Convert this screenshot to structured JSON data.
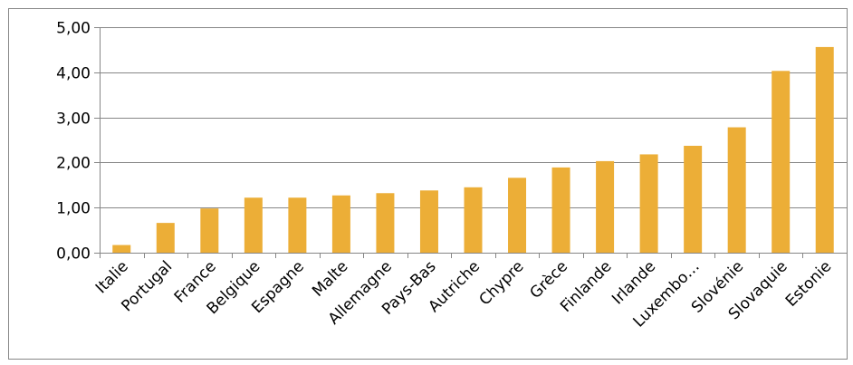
{
  "chart_data": {
    "type": "bar",
    "categories": [
      "Italie",
      "Portugal",
      "France",
      "Belgique",
      "Espagne",
      "Malte",
      "Allemagne",
      "Pays-Bas",
      "Autriche",
      "Chypre",
      "Grèce",
      "Finlande",
      "Irlande",
      "Luxembo…",
      "Slovénie",
      "Slovaquie",
      "Estonie"
    ],
    "values": [
      0.17,
      0.66,
      0.98,
      1.22,
      1.22,
      1.27,
      1.32,
      1.38,
      1.45,
      1.66,
      1.89,
      2.03,
      2.18,
      2.37,
      2.78,
      4.03,
      4.56
    ],
    "ylim": [
      0,
      5
    ],
    "yticks": [
      0,
      1,
      2,
      3,
      4,
      5
    ],
    "ytick_labels": [
      "0,00",
      "1,00",
      "2,00",
      "3,00",
      "4,00",
      "5,00"
    ],
    "grid": true,
    "legend": "none",
    "colors": {
      "bar": "#ECAE37",
      "grid": "#868686",
      "frame": "#868686"
    }
  }
}
